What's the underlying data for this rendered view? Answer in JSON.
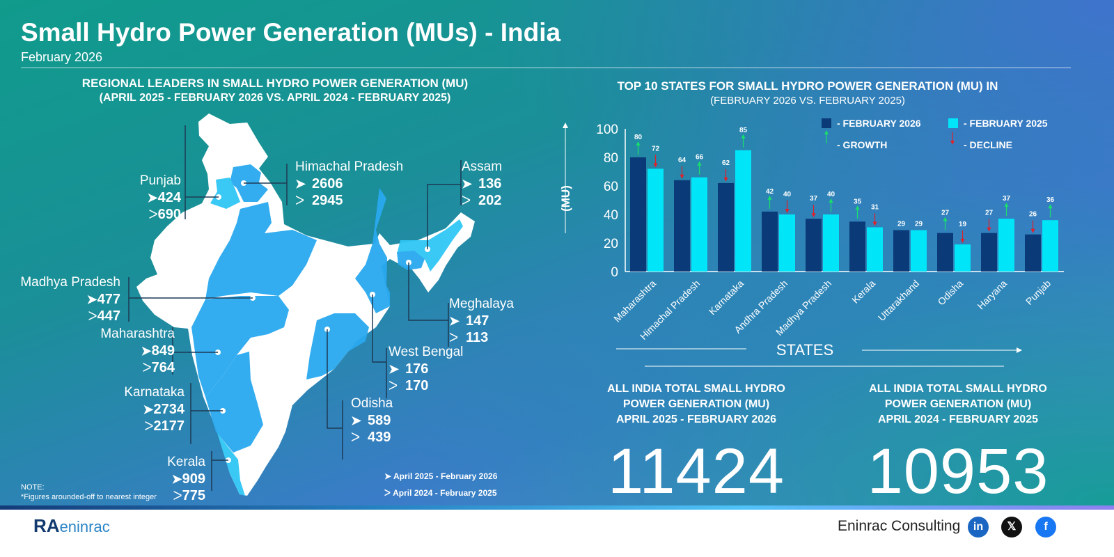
{
  "header": {
    "title": "Small Hydro Power Generation (MUs) - India",
    "subtitle": "February 2026"
  },
  "map_section": {
    "heading1": "REGIONAL LEADERS IN SMALL HYDRO POWER GENERATION (MU)",
    "heading2": "(APRIL 2025 - FEBRUARY 2026 VS. APRIL 2024 - FEBRUARY 2025)",
    "states": [
      {
        "name": "Punjab",
        "current": "424",
        "previous": "690"
      },
      {
        "name": "Himachal Pradesh",
        "current": "2606",
        "previous": "2945"
      },
      {
        "name": "Assam",
        "current": "136",
        "previous": "202"
      },
      {
        "name": "Madhya Pradesh",
        "current": "477",
        "previous": "447"
      },
      {
        "name": "Meghalaya",
        "current": "147",
        "previous": "113"
      },
      {
        "name": "Maharashtra",
        "current": "849",
        "previous": "764"
      },
      {
        "name": "West Bengal",
        "current": "176",
        "previous": "170"
      },
      {
        "name": "Karnataka",
        "current": "2734",
        "previous": "2177"
      },
      {
        "name": "Odisha",
        "current": "589",
        "previous": "439"
      },
      {
        "name": "Kerala",
        "current": "909",
        "previous": "775"
      }
    ],
    "legend": {
      "current": "April 2025 - February 2026",
      "previous": "April 2024 - February 2025"
    },
    "note_title": "NOTE:",
    "note": "*Figures arounded-off to nearest integer"
  },
  "chart_data": {
    "type": "bar",
    "title": "TOP 10 STATES FOR SMALL HYDRO POWER GENERATION (MU) IN",
    "subtitle": "(FEBRUARY 2026 VS. FEBRUARY 2025)",
    "xlabel": "STATES",
    "ylabel": "(MU)",
    "ylim": [
      0,
      100
    ],
    "yticks": [
      0,
      20,
      40,
      60,
      80,
      100
    ],
    "categories": [
      "Maharashtra",
      "Himachal Pradesh",
      "Karnataka",
      "Andhra Pradesh",
      "Madhya Pradesh",
      "Kerala",
      "Uttarakhand",
      "Odisha",
      "Haryana",
      "Punjab"
    ],
    "series": [
      {
        "name": "FEBRUARY 2026",
        "color": "#0b3a78",
        "values": [
          80,
          64,
          62,
          42,
          37,
          35,
          29,
          27,
          27,
          26
        ],
        "arrows": [
          "up",
          "down",
          "down",
          "up",
          "down",
          "up",
          "none",
          "up",
          "down",
          "down"
        ]
      },
      {
        "name": "FEBRUARY 2025",
        "color": "#00e5f8",
        "values": [
          72,
          66,
          85,
          40,
          40,
          31,
          29,
          19,
          37,
          36
        ],
        "arrows": [
          "down",
          "up",
          "up",
          "down",
          "up",
          "down",
          "none",
          "down",
          "up",
          "up"
        ]
      }
    ],
    "arrow_legend": {
      "growth": "GROWTH",
      "decline": "DECLINE",
      "growth_color": "#19e06b",
      "decline_color": "#e0202a"
    },
    "legend_position": "top-right"
  },
  "totals": [
    {
      "label1": "ALL INDIA TOTAL SMALL HYDRO",
      "label2": "POWER GENERATION (MU)",
      "label3": "APRIL 2025 - FEBRUARY 2026",
      "value": "11424"
    },
    {
      "label1": "ALL INDIA TOTAL SMALL HYDRO",
      "label2": "POWER GENERATION (MU)",
      "label3": "APRIL 2024 - FEBRUARY 2025",
      "value": "10953"
    }
  ],
  "footer": {
    "logo": "RAC eninrac",
    "company": "Eninrac Consulting",
    "social": [
      "linkedin",
      "x",
      "facebook"
    ],
    "social_glyphs": [
      "in",
      "𝕏",
      "f"
    ]
  }
}
